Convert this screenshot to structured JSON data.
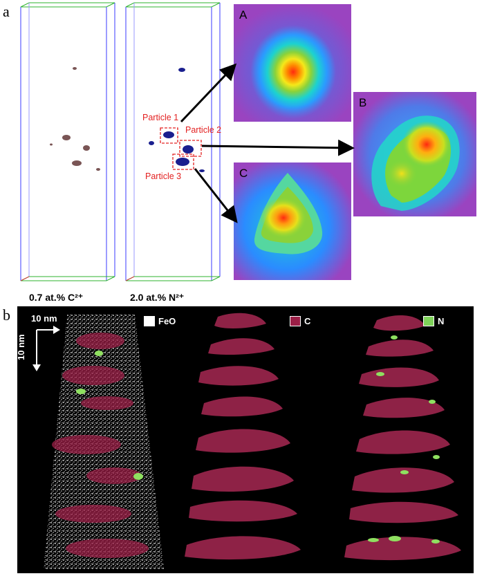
{
  "panel_a": {
    "letter": "a",
    "caption_left": "0.7 at.% C²⁺",
    "caption_right": "2.0 at.% N²⁺",
    "particle_labels": [
      "Particle 1",
      "Particle 2",
      "Particle 3"
    ],
    "heatmaps": [
      {
        "label": "A"
      },
      {
        "label": "B"
      },
      {
        "label": "C"
      }
    ]
  },
  "panel_b": {
    "letter": "b",
    "scale_horizontal": "10 nm",
    "scale_vertical": "10 nm",
    "legend": [
      {
        "label": "FeO",
        "color": "#ffffff"
      },
      {
        "label": "C",
        "color": "#9c1f47"
      },
      {
        "label": "N",
        "color": "#7fd35a"
      }
    ]
  },
  "colors": {
    "particle_box": "#e32020",
    "particle_fill": "#1a1f8f",
    "c_cluster": "#8a6060",
    "arrow": "#000000"
  }
}
